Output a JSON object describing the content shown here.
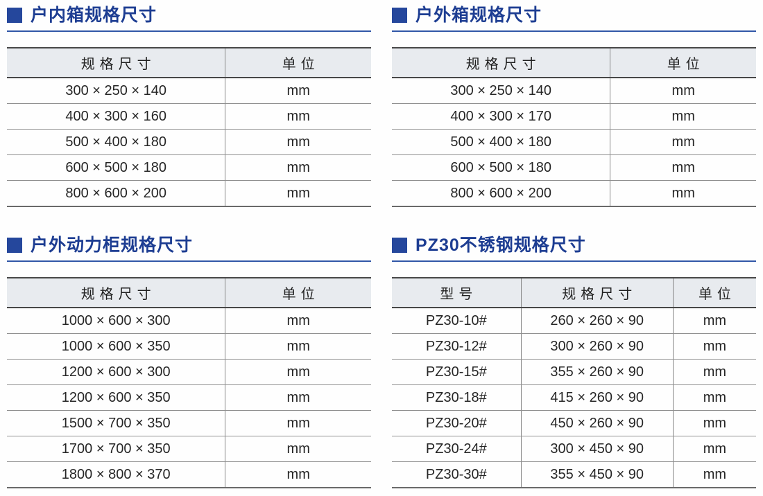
{
  "page": {
    "background": "#fefefe"
  },
  "colors": {
    "title_navy": "#1d3d92",
    "bullet_blue": "#25479c",
    "underline_blue": "#3056a7",
    "header_bg": "#e8ebef",
    "border_dark": "#474747",
    "border_light": "#8f8f8f",
    "text": "#262626"
  },
  "sections": [
    {
      "id": "indoor-box",
      "title": "户内箱规格尺寸",
      "columns": [
        "规格尺寸",
        "单位"
      ],
      "rows": [
        [
          "300 × 250 × 140",
          "mm"
        ],
        [
          "400 × 300 × 160",
          "mm"
        ],
        [
          "500 × 400 × 180",
          "mm"
        ],
        [
          "600 × 500 × 180",
          "mm"
        ],
        [
          "800 × 600 × 200",
          "mm"
        ]
      ]
    },
    {
      "id": "outdoor-box",
      "title": "户外箱规格尺寸",
      "columns": [
        "规格尺寸",
        "单位"
      ],
      "rows": [
        [
          "300 × 250 × 140",
          "mm"
        ],
        [
          "400 × 300 × 170",
          "mm"
        ],
        [
          "500 × 400 × 180",
          "mm"
        ],
        [
          "600 × 500 × 180",
          "mm"
        ],
        [
          "800 × 600 × 200",
          "mm"
        ]
      ]
    },
    {
      "id": "outdoor-power-cabinet",
      "title": "户外动力柜规格尺寸",
      "columns": [
        "规格尺寸",
        "单位"
      ],
      "rows": [
        [
          "1000 × 600 × 300",
          "mm"
        ],
        [
          "1000 × 600 × 350",
          "mm"
        ],
        [
          "1200 × 600 × 300",
          "mm"
        ],
        [
          "1200 × 600 × 350",
          "mm"
        ],
        [
          "1500 × 700 × 350",
          "mm"
        ],
        [
          "1700 × 700 × 350",
          "mm"
        ],
        [
          "1800 × 800 × 370",
          "mm"
        ]
      ]
    },
    {
      "id": "pz30-stainless-steel",
      "title": "PZ30不锈钢规格尺寸",
      "columns": [
        "型号",
        "规格尺寸",
        "单位"
      ],
      "rows": [
        [
          "PZ30-10#",
          "260 × 260 × 90",
          "mm"
        ],
        [
          "PZ30-12#",
          "300 × 260 × 90",
          "mm"
        ],
        [
          "PZ30-15#",
          "355 × 260 × 90",
          "mm"
        ],
        [
          "PZ30-18#",
          "415 × 260 × 90",
          "mm"
        ],
        [
          "PZ30-20#",
          "450 × 260 × 90",
          "mm"
        ],
        [
          "PZ30-24#",
          "300 × 450 × 90",
          "mm"
        ],
        [
          "PZ30-30#",
          "355 × 450 × 90",
          "mm"
        ]
      ]
    }
  ]
}
